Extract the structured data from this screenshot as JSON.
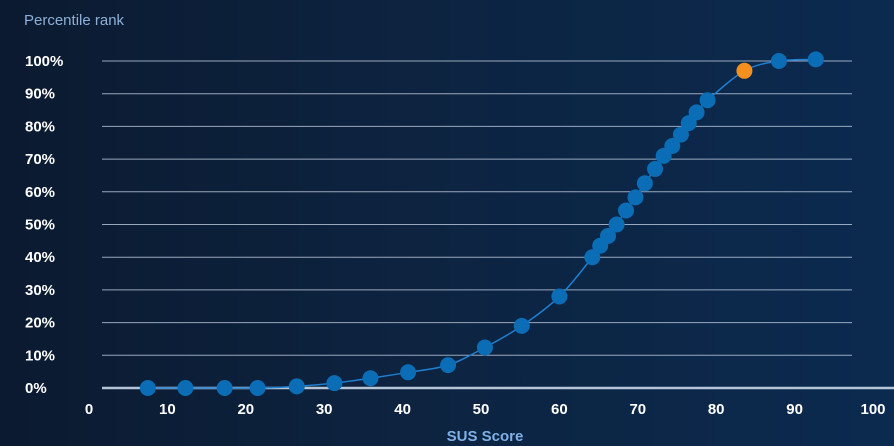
{
  "chart_data": {
    "type": "scatter",
    "ylabel": "Percentile rank",
    "xlabel": "SUS Score",
    "xlim": [
      0,
      100
    ],
    "ylim": [
      0,
      100
    ],
    "x_ticks": [
      0,
      10,
      20,
      30,
      40,
      50,
      60,
      70,
      80,
      90,
      100
    ],
    "x_tick_labels": [
      "0",
      "10",
      "20",
      "30",
      "40",
      "50",
      "60",
      "70",
      "80",
      "90",
      "100"
    ],
    "y_ticks": [
      0,
      10,
      20,
      30,
      40,
      50,
      60,
      70,
      80,
      90,
      100
    ],
    "y_tick_labels": [
      "0%",
      "10%",
      "20%",
      "30%",
      "40%",
      "50%",
      "60%",
      "70%",
      "80%",
      "90%",
      "100%"
    ],
    "grid": "horizontal",
    "colors": {
      "point": "#0a6db5",
      "highlight": "#f5901e",
      "curve": "#1f7ed0",
      "grid": "#c8d6e8",
      "baseline": "#c8d6e8"
    },
    "series": [
      {
        "values": [
          [
            7.5,
            0
          ],
          [
            12.3,
            0
          ],
          [
            17.3,
            0
          ],
          [
            21.5,
            0
          ],
          [
            26.5,
            0.5
          ],
          [
            31.3,
            1.5
          ],
          [
            35.9,
            3
          ],
          [
            40.7,
            4.8
          ],
          [
            45.8,
            7
          ],
          [
            50.5,
            12.4
          ],
          [
            55.2,
            19
          ],
          [
            60,
            28
          ],
          [
            64.2,
            40
          ],
          [
            65.2,
            43.5
          ],
          [
            66.2,
            46.5
          ],
          [
            67.3,
            50
          ],
          [
            68.5,
            54.3
          ],
          [
            69.7,
            58.3
          ],
          [
            70.9,
            62.6
          ],
          [
            72.2,
            67
          ],
          [
            73.3,
            71
          ],
          [
            74.4,
            74
          ],
          [
            75.5,
            77.5
          ],
          [
            76.5,
            81
          ],
          [
            77.5,
            84.3
          ],
          [
            78.9,
            88
          ],
          [
            88,
            100
          ],
          [
            92.7,
            100.5
          ]
        ]
      }
    ],
    "highlight_point": [
      83.6,
      97
    ]
  }
}
